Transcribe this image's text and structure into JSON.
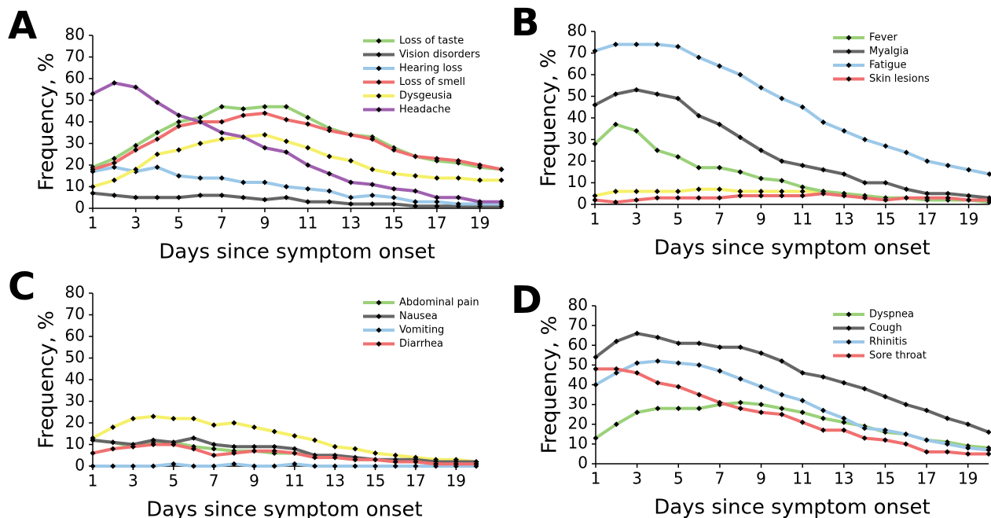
{
  "chart_data": [
    {
      "type": "line",
      "label": "A",
      "xlabel": "Days since symptom onset",
      "ylabel": "Frequency, %",
      "x": [
        1,
        2,
        3,
        4,
        5,
        6,
        7,
        8,
        9,
        10,
        11,
        12,
        13,
        14,
        15,
        16,
        17,
        18,
        19,
        20
      ],
      "xlim": [
        1,
        20
      ],
      "xticks": [
        1,
        3,
        5,
        7,
        9,
        11,
        13,
        15,
        17,
        19
      ],
      "ylim": [
        0,
        80
      ],
      "yticks": [
        0,
        10,
        20,
        30,
        40,
        50,
        60,
        70,
        80
      ],
      "series": [
        {
          "name": "Loss of taste",
          "color": "#9bd17a",
          "values": [
            19,
            23,
            29,
            35,
            40,
            42,
            47,
            46,
            47,
            47,
            42,
            37,
            34,
            33,
            28,
            24,
            22,
            21,
            19,
            18
          ]
        },
        {
          "name": "Vision disorders",
          "color": "#666666",
          "values": [
            7,
            6,
            5,
            5,
            5,
            6,
            6,
            5,
            4,
            5,
            3,
            3,
            2,
            2,
            2,
            1,
            1,
            1,
            1,
            1
          ]
        },
        {
          "name": "Hearing loss",
          "color": "#9cc8e8",
          "values": [
            17,
            19,
            17,
            19,
            15,
            14,
            14,
            12,
            12,
            10,
            9,
            8,
            5,
            6,
            5,
            3,
            3,
            2,
            2,
            2
          ]
        },
        {
          "name": "Loss of smell",
          "color": "#f07070",
          "values": [
            18,
            21,
            27,
            32,
            38,
            40,
            40,
            43,
            44,
            41,
            39,
            36,
            34,
            32,
            27,
            24,
            23,
            22,
            20,
            18
          ]
        },
        {
          "name": "Dysgeusia",
          "color": "#f5f06a",
          "values": [
            10,
            13,
            18,
            25,
            27,
            30,
            32,
            33,
            34,
            31,
            28,
            24,
            22,
            18,
            16,
            15,
            14,
            14,
            13,
            13
          ]
        },
        {
          "name": "Headache",
          "color": "#a060b0",
          "values": [
            53,
            58,
            56,
            49,
            43,
            40,
            35,
            33,
            28,
            26,
            20,
            16,
            12,
            11,
            9,
            8,
            5,
            5,
            3,
            3
          ]
        }
      ]
    },
    {
      "type": "line",
      "label": "B",
      "xlabel": "Days since symptom onset",
      "ylabel": "Frequency, %",
      "x": [
        1,
        2,
        3,
        4,
        5,
        6,
        7,
        8,
        9,
        10,
        11,
        12,
        13,
        14,
        15,
        16,
        17,
        18,
        19,
        20
      ],
      "xlim": [
        1,
        20
      ],
      "xticks": [
        1,
        3,
        5,
        7,
        9,
        11,
        13,
        15,
        17,
        19
      ],
      "ylim": [
        0,
        80
      ],
      "yticks": [
        0,
        10,
        20,
        30,
        40,
        50,
        60,
        70,
        80
      ],
      "series": [
        {
          "color": "#f5f06a",
          "values": [
            4,
            6,
            6,
            6,
            6,
            7,
            7,
            6,
            6,
            6,
            6,
            6,
            5,
            4,
            3,
            3,
            2,
            2,
            2,
            2
          ]
        },
        {
          "name": "Fever",
          "color": "#9bd17a",
          "values": [
            28,
            37,
            34,
            25,
            22,
            17,
            17,
            15,
            12,
            11,
            8,
            6,
            5,
            4,
            3,
            3,
            2,
            2,
            2,
            1
          ]
        },
        {
          "name": "Myalgia",
          "color": "#666666",
          "values": [
            46,
            51,
            53,
            51,
            49,
            41,
            37,
            31,
            25,
            20,
            18,
            16,
            14,
            10,
            10,
            7,
            5,
            5,
            4,
            3
          ]
        },
        {
          "name": "Fatigue",
          "color": "#9cc8e8",
          "values": [
            71,
            74,
            74,
            74,
            73,
            68,
            64,
            60,
            54,
            49,
            45,
            38,
            34,
            30,
            27,
            24,
            20,
            18,
            16,
            14
          ]
        },
        {
          "name": "Skin lesions",
          "color": "#f07070",
          "values": [
            2,
            1,
            2,
            3,
            3,
            3,
            3,
            4,
            4,
            4,
            4,
            5,
            4,
            3,
            2,
            3,
            3,
            3,
            2,
            2
          ]
        }
      ]
    },
    {
      "type": "line",
      "label": "C",
      "xlabel": "Days since symptom onset",
      "ylabel": "Frequency, %",
      "x": [
        1,
        2,
        3,
        4,
        5,
        6,
        7,
        8,
        9,
        10,
        11,
        12,
        13,
        14,
        15,
        16,
        17,
        18,
        19,
        20
      ],
      "xlim": [
        1,
        20
      ],
      "xticks": [
        1,
        3,
        5,
        7,
        9,
        11,
        13,
        15,
        17,
        19
      ],
      "ylim": [
        0,
        80
      ],
      "yticks": [
        0,
        10,
        20,
        30,
        40,
        50,
        60,
        70,
        80
      ],
      "series": [
        {
          "color": "#f5f06a",
          "values": [
            13,
            18,
            22,
            23,
            22,
            22,
            19,
            20,
            18,
            16,
            14,
            12,
            9,
            8,
            6,
            5,
            4,
            3,
            3,
            2
          ]
        },
        {
          "name": "Abdominal pain",
          "color": "#9bd17a",
          "values": [
            12,
            11,
            9,
            11,
            11,
            9,
            8,
            7,
            7,
            6,
            6,
            5,
            4,
            3,
            3,
            2,
            2,
            2,
            1,
            1
          ]
        },
        {
          "name": "Nausea",
          "color": "#666666",
          "values": [
            12,
            11,
            10,
            12,
            11,
            13,
            10,
            9,
            9,
            9,
            8,
            5,
            5,
            4,
            3,
            3,
            3,
            2,
            2,
            2
          ]
        },
        {
          "name": "Vomiting",
          "color": "#9cc8e8",
          "values": [
            0,
            0,
            0,
            0,
            1,
            0,
            0,
            1,
            0,
            0,
            1,
            0,
            0,
            0,
            0,
            0,
            0,
            0,
            0,
            0
          ]
        },
        {
          "name": "Diarrhea",
          "color": "#f07070",
          "values": [
            6,
            8,
            9,
            10,
            10,
            8,
            5,
            6,
            7,
            7,
            6,
            4,
            4,
            3,
            3,
            2,
            2,
            1,
            1,
            1
          ]
        }
      ]
    },
    {
      "type": "line",
      "label": "D",
      "xlabel": "Days since symptom onset",
      "ylabel": "Frequency, %",
      "x": [
        1,
        2,
        3,
        4,
        5,
        6,
        7,
        8,
        9,
        10,
        11,
        12,
        13,
        14,
        15,
        16,
        17,
        18,
        19,
        20
      ],
      "xlim": [
        1,
        20
      ],
      "xticks": [
        1,
        3,
        5,
        7,
        9,
        11,
        13,
        15,
        17,
        19
      ],
      "ylim": [
        0,
        80
      ],
      "yticks": [
        0,
        10,
        20,
        30,
        40,
        50,
        60,
        70,
        80
      ],
      "series": [
        {
          "name": "Dyspnea",
          "color": "#9bd17a",
          "values": [
            13,
            20,
            26,
            28,
            28,
            28,
            30,
            31,
            30,
            28,
            26,
            23,
            21,
            19,
            16,
            15,
            12,
            11,
            9,
            8
          ]
        },
        {
          "name": "Cough",
          "color": "#666666",
          "values": [
            54,
            62,
            66,
            64,
            61,
            61,
            59,
            59,
            56,
            52,
            46,
            44,
            41,
            38,
            34,
            30,
            27,
            23,
            20,
            16
          ]
        },
        {
          "name": "Rhinitis",
          "color": "#9cc8e8",
          "values": [
            40,
            46,
            51,
            52,
            51,
            50,
            47,
            43,
            39,
            35,
            32,
            27,
            23,
            18,
            17,
            15,
            12,
            10,
            8,
            7
          ]
        },
        {
          "name": "Sore throat",
          "color": "#f07070",
          "values": [
            48,
            48,
            46,
            41,
            39,
            35,
            31,
            28,
            26,
            25,
            21,
            17,
            17,
            13,
            12,
            10,
            6,
            6,
            5,
            5
          ]
        }
      ]
    }
  ]
}
